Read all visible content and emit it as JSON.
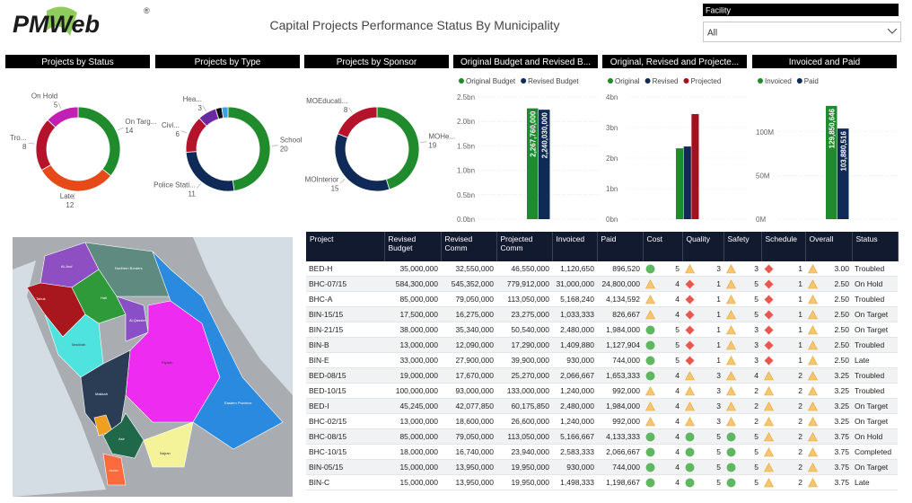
{
  "header": {
    "logo": "PMWeb",
    "trademark": "®",
    "title": "Capital Projects Performance Status By Municipality"
  },
  "filter": {
    "label": "Facility",
    "value": "All"
  },
  "chart_data": [
    {
      "type": "donut",
      "title": "Projects by Status",
      "categories": [
        "On Targ...",
        "Late",
        "Tro...",
        "On Hold"
      ],
      "values": [
        14,
        12,
        8,
        5
      ],
      "colors": [
        "#1f8b2c",
        "#e64a19",
        "#b5122c",
        "#c21fb4"
      ]
    },
    {
      "type": "donut",
      "title": "Projects by Type",
      "categories": [
        "School",
        "Police Stati...",
        "Civi...",
        "Hea...",
        null,
        null
      ],
      "values": [
        20,
        11,
        6,
        3,
        1,
        1
      ],
      "colors": [
        "#1f8b2c",
        "#0f2a57",
        "#b5122c",
        "#6a2aa2",
        "#111111",
        "#3b9fe0"
      ]
    },
    {
      "type": "donut",
      "title": "Projects by Sponsor",
      "categories": [
        "MOHe...",
        "MOInterior",
        "MOEducati..."
      ],
      "values": [
        19,
        15,
        8
      ],
      "colors": [
        "#1f8b2c",
        "#0f2a57",
        "#b5122c"
      ]
    },
    {
      "type": "bar",
      "title": "Original Budget and Revised B...",
      "series": [
        {
          "name": "Original Budget",
          "color": "#1f8b2c",
          "values": [
            2267760000
          ],
          "value_labels": [
            "2,267,760,000"
          ]
        },
        {
          "name": "Revised Budget",
          "color": "#0f2a57",
          "values": [
            2240030000
          ],
          "value_labels": [
            "2,240,030,000"
          ]
        }
      ],
      "ylim": [
        0,
        2500000000
      ],
      "yticks": [
        {
          "value": 0,
          "label": "0.0bn"
        },
        {
          "value": 500000000,
          "label": "0.5bn"
        },
        {
          "value": 1000000000,
          "label": "1.0bn"
        },
        {
          "value": 1500000000,
          "label": "1.5bn"
        },
        {
          "value": 2000000000,
          "label": "2.0bn"
        },
        {
          "value": 2500000000,
          "label": "2.5bn"
        }
      ],
      "grid": true
    },
    {
      "type": "bar",
      "title": "Original, Revised and Projecte...",
      "series": [
        {
          "name": "Original",
          "color": "#1f8b2c",
          "values": [
            2320000000
          ]
        },
        {
          "name": "Revised",
          "color": "#0f2a57",
          "values": [
            2380000000
          ]
        },
        {
          "name": "Projected",
          "color": "#a5101e",
          "values": [
            3440000000
          ]
        }
      ],
      "ylim": [
        0,
        4000000000
      ],
      "yticks": [
        {
          "value": 0,
          "label": "0bn"
        },
        {
          "value": 1000000000,
          "label": "1bn"
        },
        {
          "value": 2000000000,
          "label": "2bn"
        },
        {
          "value": 3000000000,
          "label": "3bn"
        },
        {
          "value": 4000000000,
          "label": "4bn"
        }
      ],
      "grid": true
    },
    {
      "type": "bar",
      "title": "Invoiced and Paid",
      "series": [
        {
          "name": "Invoiced",
          "color": "#1f8b2c",
          "values": [
            129850646
          ],
          "value_labels": [
            "129,850,646"
          ]
        },
        {
          "name": "Paid",
          "color": "#0f2a57",
          "values": [
            103880516
          ],
          "value_labels": [
            "103,880,516"
          ]
        }
      ],
      "ylim": [
        0,
        140000000
      ],
      "yticks": [
        {
          "value": 0,
          "label": "0M"
        },
        {
          "value": 50000000,
          "label": "50M"
        },
        {
          "value": 100000000,
          "label": "100M"
        }
      ],
      "grid": true
    }
  ],
  "map": {
    "labels": [
      "Al-Jouf",
      "Northern Borders",
      "Tabuk",
      "Hail",
      "Al-Qassim",
      "Madinah",
      "Riyadh",
      "Eastern Province",
      "Makkah",
      "Asir",
      "Najran",
      "Jazan"
    ]
  },
  "table": {
    "columns": [
      "Project",
      "Revised Budget",
      "Revised Comm",
      "Projected Comm",
      "Invoiced",
      "Paid",
      "Cost",
      "Quality",
      "Safety",
      "Schedule",
      "Overall",
      "Status"
    ],
    "rows": [
      [
        "BED-H",
        "35,000,000",
        "32,550,000",
        "46,550,000",
        "1,120,650",
        "896,520",
        {
          "icon": "circle",
          "text": "5"
        },
        {
          "icon": "triangle",
          "text": "3"
        },
        {
          "icon": "triangle",
          "text": "3"
        },
        {
          "icon": "diamond",
          "text": "1"
        },
        {
          "icon": "triangle",
          "text": "3.00"
        },
        "Troubled"
      ],
      [
        "BHC-07/15",
        "584,300,000",
        "545,352,000",
        "779,912,000",
        "31,000,000",
        "24,800,000",
        {
          "icon": "triangle",
          "text": "4"
        },
        {
          "icon": "diamond",
          "text": "1"
        },
        {
          "icon": "triangle",
          "text": "5"
        },
        {
          "icon": "diamond",
          "text": "1"
        },
        {
          "icon": "triangle",
          "text": "2.50"
        },
        "On Hold"
      ],
      [
        "BHC-A",
        "85,000,000",
        "79,050,000",
        "113,050,000",
        "5,168,240",
        "4,134,592",
        {
          "icon": "triangle",
          "text": "4"
        },
        {
          "icon": "diamond",
          "text": "1"
        },
        {
          "icon": "triangle",
          "text": "5"
        },
        {
          "icon": "diamond",
          "text": "1"
        },
        {
          "icon": "triangle",
          "text": "2.50"
        },
        "Troubled"
      ],
      [
        "BIN-15/15",
        "17,500,000",
        "16,275,000",
        "23,275,000",
        "1,033,333",
        "826,667",
        {
          "icon": "triangle",
          "text": "4"
        },
        {
          "icon": "diamond",
          "text": "1"
        },
        {
          "icon": "triangle",
          "text": "5"
        },
        {
          "icon": "diamond",
          "text": "1"
        },
        {
          "icon": "triangle",
          "text": "2.50"
        },
        "On Target"
      ],
      [
        "BIN-21/15",
        "38,000,000",
        "35,340,000",
        "50,540,000",
        "2,480,000",
        "1,984,000",
        {
          "icon": "circle",
          "text": "5"
        },
        {
          "icon": "diamond",
          "text": "1"
        },
        {
          "icon": "triangle",
          "text": "3"
        },
        {
          "icon": "diamond",
          "text": "1"
        },
        {
          "icon": "triangle",
          "text": "2.50"
        },
        "On Target"
      ],
      [
        "BIN-B",
        "13,000,000",
        "12,090,000",
        "17,290,000",
        "1,409,880",
        "1,127,904",
        {
          "icon": "circle",
          "text": "5"
        },
        {
          "icon": "diamond",
          "text": "1"
        },
        {
          "icon": "triangle",
          "text": "3"
        },
        {
          "icon": "diamond",
          "text": "1"
        },
        {
          "icon": "triangle",
          "text": "2.50"
        },
        "Troubled"
      ],
      [
        "BIN-E",
        "33,000,000",
        "27,900,000",
        "39,900,000",
        "930,000",
        "744,000",
        {
          "icon": "circle",
          "text": "5"
        },
        {
          "icon": "diamond",
          "text": "1"
        },
        {
          "icon": "triangle",
          "text": "3"
        },
        {
          "icon": "diamond",
          "text": "1"
        },
        {
          "icon": "triangle",
          "text": "2.50"
        },
        "Late"
      ],
      [
        "BED-08/15",
        "19,000,000",
        "17,670,000",
        "25,270,000",
        "2,066,667",
        "1,653,333",
        {
          "icon": "circle",
          "text": "4"
        },
        {
          "icon": "triangle",
          "text": "3"
        },
        {
          "icon": "triangle",
          "text": "4"
        },
        {
          "icon": "triangle",
          "text": "2"
        },
        {
          "icon": "triangle",
          "text": "3.25"
        },
        "Troubled"
      ],
      [
        "BED-10/15",
        "100,000,000",
        "93,000,000",
        "133,000,000",
        "1,240,000",
        "992,000",
        {
          "icon": "triangle",
          "text": "4"
        },
        {
          "icon": "triangle",
          "text": "3"
        },
        {
          "icon": "triangle",
          "text": "2"
        },
        {
          "icon": "triangle",
          "text": "2"
        },
        {
          "icon": "triangle",
          "text": "3.25"
        },
        "Troubled"
      ],
      [
        "BED-I",
        "45,245,000",
        "42,077,850",
        "60,175,850",
        "2,480,000",
        "1,984,000",
        {
          "icon": "triangle",
          "text": "4"
        },
        {
          "icon": "triangle",
          "text": "3"
        },
        {
          "icon": "triangle",
          "text": "2"
        },
        {
          "icon": "triangle",
          "text": "2"
        },
        {
          "icon": "triangle",
          "text": "3.25"
        },
        "On Target"
      ],
      [
        "BHC-02/15",
        "13,000,000",
        "18,600,000",
        "26,600,000",
        "1,240,000",
        "992,000",
        {
          "icon": "triangle",
          "text": "4"
        },
        {
          "icon": "triangle",
          "text": "3"
        },
        {
          "icon": "triangle",
          "text": "2"
        },
        {
          "icon": "triangle",
          "text": "2"
        },
        {
          "icon": "triangle",
          "text": "3.25"
        },
        "On Target"
      ],
      [
        "BHC-08/15",
        "85,000,000",
        "79,050,000",
        "113,050,000",
        "5,166,667",
        "4,133,333",
        {
          "icon": "circle",
          "text": "4"
        },
        {
          "icon": "circle",
          "text": "5"
        },
        {
          "icon": "circle",
          "text": "5"
        },
        {
          "icon": "triangle",
          "text": "2"
        },
        {
          "icon": "triangle",
          "text": "3.75"
        },
        "On Hold"
      ],
      [
        "BHC-10/15",
        "18,000,000",
        "16,740,000",
        "23,940,000",
        "2,583,333",
        "2,066,667",
        {
          "icon": "circle",
          "text": "4"
        },
        {
          "icon": "circle",
          "text": "5"
        },
        {
          "icon": "circle",
          "text": "5"
        },
        {
          "icon": "triangle",
          "text": "2"
        },
        {
          "icon": "triangle",
          "text": "3.75"
        },
        "Completed"
      ],
      [
        "BIN-05/15",
        "15,000,000",
        "13,950,000",
        "19,950,000",
        "930,000",
        "744,000",
        {
          "icon": "circle",
          "text": "4"
        },
        {
          "icon": "circle",
          "text": "5"
        },
        {
          "icon": "circle",
          "text": "5"
        },
        {
          "icon": "triangle",
          "text": "2"
        },
        {
          "icon": "triangle",
          "text": "3.75"
        },
        "On Target"
      ],
      [
        "BIN-C",
        "15,000,000",
        "13,950,000",
        "19,950,000",
        "1,498,333",
        "1,198,667",
        {
          "icon": "circle",
          "text": "4"
        },
        {
          "icon": "circle",
          "text": "5"
        },
        {
          "icon": "circle",
          "text": "5"
        },
        {
          "icon": "triangle",
          "text": "2"
        },
        {
          "icon": "triangle",
          "text": "3.75"
        },
        "Late"
      ]
    ]
  }
}
